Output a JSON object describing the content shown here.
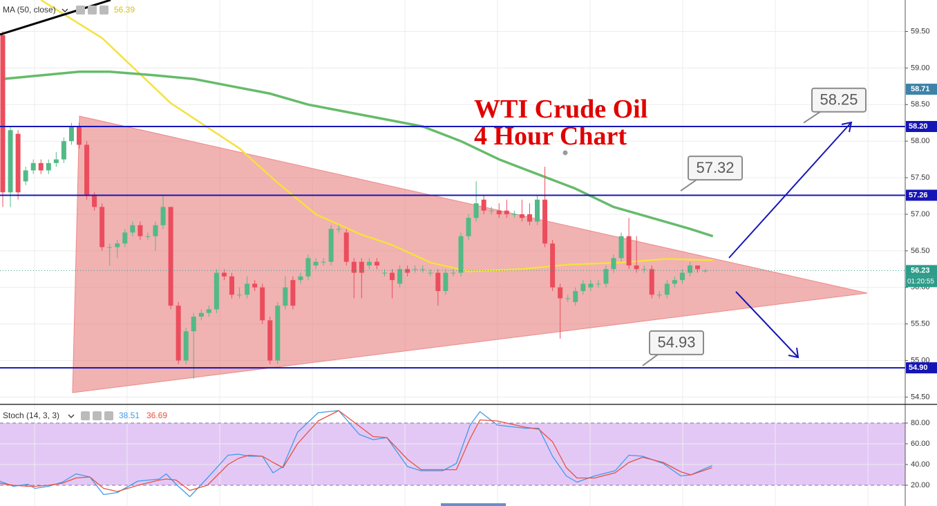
{
  "chart_data": [
    {
      "type": "candlestick",
      "title": "WTI Crude Oil",
      "subtitle": "4 Hour Chart",
      "up_color": "#53b987",
      "down_color": "#eb4d5c",
      "ylim": [
        54.4,
        59.93
      ],
      "yticks": [
        {
          "value": 54.5,
          "label": "54.50"
        },
        {
          "value": 55,
          "label": "55.00"
        },
        {
          "value": 55.5,
          "label": "55.50"
        },
        {
          "value": 56,
          "label": "56.00"
        },
        {
          "value": 56.5,
          "label": "56.50"
        },
        {
          "value": 57,
          "label": "57.00"
        },
        {
          "value": 57.5,
          "label": "57.50"
        },
        {
          "value": 58,
          "label": "58.00"
        },
        {
          "value": 58.5,
          "label": "58.50"
        },
        {
          "value": 59,
          "label": "59.00"
        },
        {
          "value": 59.5,
          "label": "59.50"
        }
      ],
      "open": [
        59.45,
        57.3,
        58.1,
        57.45,
        57.6,
        57.7,
        57.6,
        57.7,
        57.75,
        58.0,
        58.2,
        57.95,
        57.25,
        57.1,
        56.55,
        56.55,
        56.6,
        56.75,
        56.85,
        56.7,
        56.7,
        56.85,
        57.1,
        55.75,
        55.0,
        55.4,
        55.6,
        55.65,
        55.7,
        56.2,
        56.15,
        55.9,
        55.9,
        56.05,
        56.0,
        55.55,
        55.0,
        55.75,
        56.1,
        56.1,
        56.15,
        56.3,
        56.35,
        56.35,
        56.8,
        56.75,
        56.35,
        56.35,
        56.3,
        56.35,
        56.2,
        56.2,
        56.05,
        56.25,
        56.25,
        56.25,
        56.2,
        56.2,
        55.95,
        56.2,
        56.2,
        56.7,
        56.95,
        57.2,
        57.05,
        57.05,
        57.05,
        57.0,
        57.0,
        57.0,
        56.9,
        57.2,
        56.6,
        56.0,
        55.85,
        55.8,
        55.95,
        56.0,
        56.05,
        56.05,
        56.25,
        56.4,
        56.7,
        56.3,
        56.25,
        56.25,
        55.9,
        55.9,
        56.05,
        56.1,
        56.2,
        56.3,
        56.23
      ],
      "high": [
        59.5,
        58.2,
        58.15,
        57.65,
        57.75,
        57.75,
        57.75,
        57.85,
        58.05,
        58.25,
        58.25,
        58.0,
        57.3,
        57.15,
        56.6,
        56.65,
        56.8,
        56.9,
        56.9,
        56.75,
        56.9,
        57.25,
        57.1,
        55.8,
        55.45,
        55.65,
        55.7,
        55.75,
        56.25,
        56.25,
        56.2,
        56.0,
        56.15,
        56.1,
        56.05,
        55.6,
        55.8,
        56.15,
        56.15,
        56.2,
        56.45,
        56.4,
        56.4,
        56.85,
        56.85,
        56.8,
        56.4,
        56.4,
        56.4,
        56.4,
        56.25,
        56.25,
        56.3,
        56.3,
        56.3,
        56.3,
        56.25,
        56.25,
        56.25,
        56.25,
        56.75,
        57.0,
        57.45,
        57.25,
        57.1,
        57.15,
        57.2,
        57.05,
        57.2,
        57.15,
        57.25,
        57.65,
        56.65,
        56.05,
        55.9,
        56.0,
        56.1,
        56.1,
        56.1,
        56.3,
        56.45,
        56.75,
        56.95,
        56.7,
        56.3,
        56.3,
        55.95,
        56.1,
        56.15,
        56.25,
        56.35,
        56.3,
        56.25
      ],
      "low": [
        57.1,
        57.1,
        57.2,
        57.4,
        57.55,
        57.55,
        57.55,
        57.65,
        57.7,
        57.95,
        57.9,
        57.2,
        57.05,
        56.5,
        56.3,
        56.4,
        56.55,
        56.7,
        56.65,
        56.65,
        56.5,
        56.8,
        55.7,
        54.95,
        54.95,
        54.75,
        55.55,
        55.6,
        55.65,
        56.1,
        55.85,
        55.85,
        55.85,
        55.95,
        55.5,
        54.95,
        54.95,
        55.7,
        55.7,
        56.05,
        56.1,
        56.25,
        56.3,
        56.3,
        56.75,
        56.3,
        55.85,
        55.85,
        56.25,
        56.25,
        56.15,
        55.85,
        56.0,
        56.15,
        56.2,
        56.2,
        56.15,
        55.75,
        55.9,
        56.15,
        56.15,
        56.65,
        56.9,
        57.0,
        57.0,
        56.95,
        56.95,
        56.95,
        56.9,
        56.85,
        56.85,
        56.55,
        55.95,
        55.3,
        55.8,
        55.75,
        55.9,
        55.95,
        56.0,
        56.0,
        56.2,
        56.35,
        56.25,
        56.2,
        56.2,
        55.85,
        55.85,
        55.85,
        56.0,
        56.05,
        56.15,
        56.2,
        56.2
      ],
      "close": [
        57.3,
        58.15,
        57.3,
        57.6,
        57.7,
        57.6,
        57.7,
        57.75,
        58.0,
        58.2,
        57.95,
        57.25,
        57.1,
        56.55,
        56.55,
        56.6,
        56.75,
        56.85,
        56.7,
        56.7,
        56.85,
        57.1,
        55.75,
        55.0,
        55.4,
        55.6,
        55.65,
        55.7,
        56.2,
        56.15,
        55.9,
        55.9,
        56.05,
        56.0,
        55.55,
        55.0,
        55.75,
        56.0,
        55.75,
        56.15,
        56.4,
        56.35,
        56.35,
        56.8,
        56.8,
        56.35,
        56.2,
        56.2,
        56.35,
        56.3,
        56.2,
        56.1,
        56.25,
        56.2,
        56.25,
        56.25,
        56.2,
        55.95,
        56.2,
        56.2,
        56.7,
        56.95,
        57.15,
        57.05,
        57.05,
        57.0,
        57.0,
        57.0,
        56.95,
        56.9,
        57.2,
        56.6,
        56.0,
        55.85,
        55.85,
        55.95,
        56.05,
        56.05,
        56.05,
        56.25,
        56.4,
        56.7,
        56.3,
        56.25,
        56.25,
        55.9,
        55.9,
        56.05,
        56.1,
        56.2,
        56.3,
        56.25,
        56.23
      ],
      "series": [
        {
          "name": "MA (50, close)",
          "legend_value": 56.39,
          "color": "#f5e13c",
          "x": [
            5,
            13,
            22,
            31,
            36,
            41,
            47,
            51,
            56,
            61,
            68,
            74,
            81,
            87,
            93
          ],
          "values": [
            59.93,
            59.41,
            58.52,
            57.9,
            57.43,
            57.0,
            56.72,
            56.58,
            56.34,
            56.22,
            56.25,
            56.31,
            56.34,
            56.39,
            56.37
          ]
        },
        {
          "color": "#66bb6a",
          "x": [
            0,
            5,
            10,
            14,
            20,
            25,
            30,
            35,
            40,
            45,
            50,
            55,
            60,
            65,
            70,
            75,
            80,
            85,
            90,
            93
          ],
          "values": [
            58.85,
            58.9,
            58.95,
            58.95,
            58.9,
            58.85,
            58.75,
            58.65,
            58.5,
            58.4,
            58.3,
            58.2,
            58.0,
            57.75,
            57.55,
            57.35,
            57.1,
            56.95,
            56.8,
            56.7
          ]
        }
      ],
      "levels": {
        "values": [
          58.2,
          57.26,
          54.9
        ],
        "value_labels": [
          "58.20",
          "57.26",
          "54.90"
        ],
        "color": "#1515b5"
      },
      "callouts": {
        "values": [
          58.25,
          57.32,
          54.93
        ]
      },
      "axis_badges": {
        "values": [
          58.71,
          56.23
        ],
        "colors": [
          "#3f82a8",
          "#2e9c8a"
        ]
      },
      "countdown": "01:20:55"
    },
    {
      "type": "line",
      "title": "Stoch (14, 3, 3)",
      "ylim": [
        0,
        98
      ],
      "yticks": [
        {
          "value": 20,
          "label": "20.00"
        },
        {
          "value": 40,
          "label": "40.00"
        },
        {
          "value": 60,
          "label": "60.00"
        },
        {
          "value": 80,
          "label": "80.00"
        }
      ],
      "band": [
        20,
        80
      ],
      "band_color": "#e3c8f6",
      "series": [
        {
          "legend_value": 38.51,
          "color": "#3d9be9",
          "x": [
            -0.4,
            1.4,
            3.3,
            4.2,
            6,
            7.8,
            9.6,
            11.4,
            13.2,
            15,
            17.7,
            20.5,
            21.4,
            22.7,
            24.5,
            26.8,
            29.5,
            30.9,
            32.2,
            34,
            35.4,
            36.7,
            38.6,
            41.3,
            44,
            46.7,
            48.5,
            50.3,
            53,
            54.8,
            57.6,
            59.4,
            61.2,
            62.5,
            64.8,
            68.4,
            70.2,
            72,
            73.8,
            75.2,
            77.5,
            80.2,
            82,
            83.8,
            86.5,
            88.8,
            90.1,
            92.9
          ],
          "values": [
            24,
            19,
            21,
            17,
            19,
            23,
            31,
            28,
            11,
            13,
            24,
            26,
            31,
            21,
            9,
            27,
            49,
            50,
            48,
            48,
            32,
            38,
            71,
            90,
            92,
            69,
            64,
            66,
            38,
            34,
            34,
            41,
            78,
            91,
            78,
            75,
            75,
            48,
            29,
            23,
            29,
            34,
            49,
            48,
            41,
            29,
            30,
            39
          ]
        },
        {
          "legend_value": 36.69,
          "color": "#e8503c",
          "x": [
            -0.4,
            1.4,
            3.3,
            4.2,
            6,
            7.8,
            9.6,
            11.4,
            13.2,
            15,
            17.7,
            20.5,
            21.4,
            22.7,
            24.5,
            26.8,
            29.5,
            30.9,
            32.2,
            34,
            35.4,
            36.7,
            38.6,
            41.3,
            44,
            46.7,
            48.5,
            50.3,
            53,
            54.8,
            57.6,
            59.4,
            61.2,
            62.5,
            64.8,
            68.4,
            70.2,
            72,
            73.8,
            75.2,
            77.5,
            80.2,
            82,
            83.8,
            86.5,
            88.8,
            90.1,
            92.9
          ],
          "values": [
            22,
            20,
            19,
            19,
            20,
            22,
            27,
            28,
            17,
            14,
            20,
            25,
            26,
            25,
            15,
            20,
            40,
            46,
            49,
            48,
            42,
            37,
            60,
            82,
            92,
            77,
            67,
            66,
            45,
            35,
            35,
            35,
            65,
            83,
            82,
            76,
            74,
            62,
            37,
            27,
            27,
            32,
            42,
            47,
            42,
            33,
            30,
            37
          ]
        }
      ]
    }
  ]
}
